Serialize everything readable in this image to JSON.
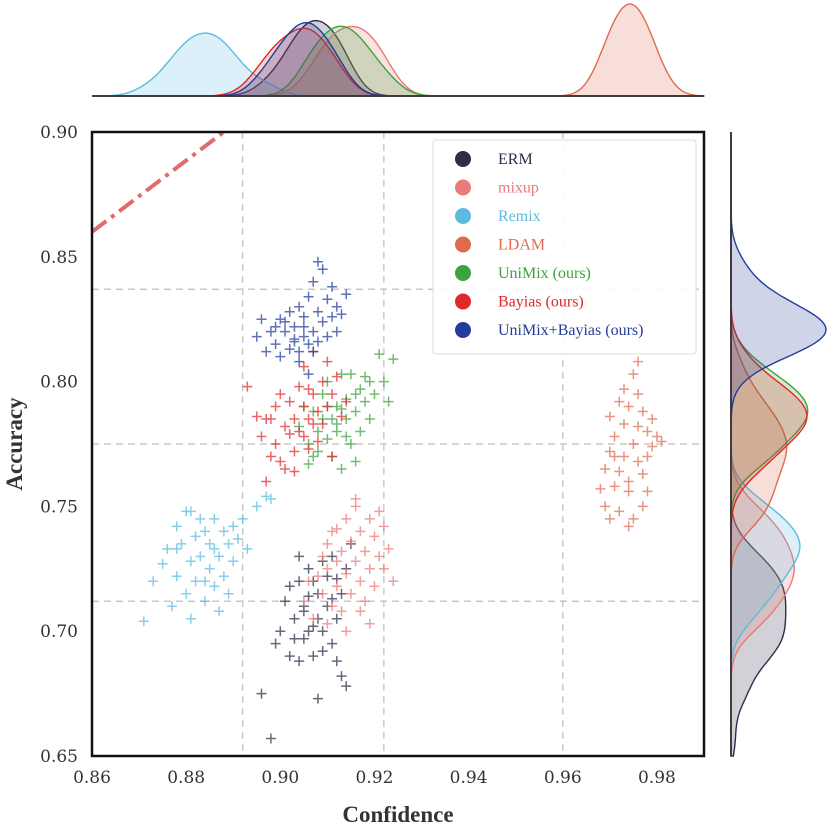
{
  "chart_data": {
    "type": "scatter",
    "xlabel": "Confidence",
    "ylabel": "Accuracy",
    "xlim": [
      0.86,
      0.99
    ],
    "ylim": [
      0.65,
      0.9
    ],
    "x_ticks": [
      "0.86",
      "0.88",
      "0.90",
      "0.92",
      "0.94",
      "0.96",
      "0.98"
    ],
    "y_ticks": [
      "0.65",
      "0.70",
      "0.75",
      "0.80",
      "0.85",
      "0.90"
    ],
    "grid_x": [
      0.892,
      0.922,
      0.96
    ],
    "grid_y": [
      0.712,
      0.775,
      0.837
    ],
    "reference_line": {
      "label": "",
      "color": "#e06c6c",
      "points": [
        [
          0.86,
          0.86
        ],
        [
          0.888,
          0.9
        ]
      ]
    },
    "legend_position": "top-right",
    "series": [
      {
        "name": "ERM",
        "color": "#2d2e4a",
        "points": [
          [
            0.896,
            0.675
          ],
          [
            0.898,
            0.657
          ],
          [
            0.899,
            0.695
          ],
          [
            0.9,
            0.7
          ],
          [
            0.901,
            0.712
          ],
          [
            0.902,
            0.69
          ],
          [
            0.902,
            0.718
          ],
          [
            0.903,
            0.705
          ],
          [
            0.904,
            0.688
          ],
          [
            0.904,
            0.72
          ],
          [
            0.905,
            0.708
          ],
          [
            0.905,
            0.697
          ],
          [
            0.906,
            0.714
          ],
          [
            0.906,
            0.725
          ],
          [
            0.907,
            0.702
          ],
          [
            0.907,
            0.69
          ],
          [
            0.908,
            0.673
          ],
          [
            0.908,
            0.715
          ],
          [
            0.909,
            0.7
          ],
          [
            0.909,
            0.728
          ],
          [
            0.91,
            0.71
          ],
          [
            0.91,
            0.722
          ],
          [
            0.911,
            0.695
          ],
          [
            0.911,
            0.73
          ],
          [
            0.912,
            0.705
          ],
          [
            0.912,
            0.688
          ],
          [
            0.913,
            0.682
          ],
          [
            0.913,
            0.715
          ],
          [
            0.914,
            0.725
          ],
          [
            0.914,
            0.678
          ],
          [
            0.915,
            0.735
          ],
          [
            0.903,
            0.697
          ],
          [
            0.905,
            0.71
          ],
          [
            0.907,
            0.72
          ],
          [
            0.909,
            0.692
          ],
          [
            0.911,
            0.713
          ],
          [
            0.906,
            0.7
          ],
          [
            0.904,
            0.73
          ],
          [
            0.912,
            0.721
          ],
          [
            0.908,
            0.705
          ]
        ]
      },
      {
        "name": "mixup",
        "color": "#ec7a7a",
        "points": [
          [
            0.905,
            0.712
          ],
          [
            0.906,
            0.72
          ],
          [
            0.907,
            0.705
          ],
          [
            0.908,
            0.722
          ],
          [
            0.909,
            0.73
          ],
          [
            0.909,
            0.715
          ],
          [
            0.91,
            0.735
          ],
          [
            0.91,
            0.725
          ],
          [
            0.911,
            0.71
          ],
          [
            0.911,
            0.74
          ],
          [
            0.912,
            0.728
          ],
          [
            0.912,
            0.718
          ],
          [
            0.913,
            0.732
          ],
          [
            0.913,
            0.708
          ],
          [
            0.914,
            0.745
          ],
          [
            0.914,
            0.723
          ],
          [
            0.915,
            0.736
          ],
          [
            0.915,
            0.715
          ],
          [
            0.916,
            0.728
          ],
          [
            0.916,
            0.75
          ],
          [
            0.917,
            0.72
          ],
          [
            0.917,
            0.74
          ],
          [
            0.918,
            0.732
          ],
          [
            0.918,
            0.712
          ],
          [
            0.919,
            0.725
          ],
          [
            0.919,
            0.745
          ],
          [
            0.92,
            0.738
          ],
          [
            0.92,
            0.718
          ],
          [
            0.921,
            0.73
          ],
          [
            0.922,
            0.725
          ],
          [
            0.922,
            0.742
          ],
          [
            0.923,
            0.733
          ],
          [
            0.924,
            0.72
          ],
          [
            0.916,
            0.753
          ],
          [
            0.919,
            0.703
          ],
          [
            0.921,
            0.748
          ],
          [
            0.91,
            0.703
          ],
          [
            0.914,
            0.7
          ],
          [
            0.912,
            0.741
          ],
          [
            0.917,
            0.708
          ]
        ]
      },
      {
        "name": "Remix",
        "color": "#5bbce0",
        "points": [
          [
            0.871,
            0.704
          ],
          [
            0.873,
            0.72
          ],
          [
            0.875,
            0.727
          ],
          [
            0.876,
            0.733
          ],
          [
            0.877,
            0.71
          ],
          [
            0.878,
            0.742
          ],
          [
            0.878,
            0.722
          ],
          [
            0.879,
            0.735
          ],
          [
            0.88,
            0.715
          ],
          [
            0.88,
            0.748
          ],
          [
            0.881,
            0.728
          ],
          [
            0.881,
            0.705
          ],
          [
            0.882,
            0.738
          ],
          [
            0.882,
            0.72
          ],
          [
            0.883,
            0.745
          ],
          [
            0.883,
            0.73
          ],
          [
            0.884,
            0.712
          ],
          [
            0.884,
            0.74
          ],
          [
            0.885,
            0.725
          ],
          [
            0.885,
            0.735
          ],
          [
            0.886,
            0.718
          ],
          [
            0.886,
            0.745
          ],
          [
            0.887,
            0.73
          ],
          [
            0.887,
            0.708
          ],
          [
            0.888,
            0.74
          ],
          [
            0.888,
            0.722
          ],
          [
            0.889,
            0.735
          ],
          [
            0.889,
            0.715
          ],
          [
            0.89,
            0.742
          ],
          [
            0.89,
            0.728
          ],
          [
            0.891,
            0.737
          ],
          [
            0.892,
            0.745
          ],
          [
            0.893,
            0.733
          ],
          [
            0.895,
            0.75
          ],
          [
            0.897,
            0.754
          ],
          [
            0.898,
            0.753
          ],
          [
            0.878,
            0.733
          ],
          [
            0.881,
            0.748
          ],
          [
            0.884,
            0.72
          ],
          [
            0.886,
            0.733
          ]
        ]
      },
      {
        "name": "LDAM",
        "color": "#de6b50",
        "points": [
          [
            0.968,
            0.757
          ],
          [
            0.969,
            0.765
          ],
          [
            0.969,
            0.75
          ],
          [
            0.97,
            0.772
          ],
          [
            0.97,
            0.745
          ],
          [
            0.971,
            0.758
          ],
          [
            0.971,
            0.778
          ],
          [
            0.972,
            0.764
          ],
          [
            0.972,
            0.748
          ],
          [
            0.973,
            0.783
          ],
          [
            0.973,
            0.77
          ],
          [
            0.974,
            0.756
          ],
          [
            0.974,
            0.79
          ],
          [
            0.974,
            0.76
          ],
          [
            0.975,
            0.775
          ],
          [
            0.975,
            0.745
          ],
          [
            0.976,
            0.782
          ],
          [
            0.976,
            0.768
          ],
          [
            0.976,
            0.795
          ],
          [
            0.977,
            0.788
          ],
          [
            0.977,
            0.763
          ],
          [
            0.978,
            0.78
          ],
          [
            0.978,
            0.77
          ],
          [
            0.979,
            0.785
          ],
          [
            0.979,
            0.774
          ],
          [
            0.98,
            0.778
          ],
          [
            0.981,
            0.776
          ],
          [
            0.975,
            0.803
          ],
          [
            0.976,
            0.808
          ],
          [
            0.972,
            0.792
          ],
          [
            0.973,
            0.797
          ],
          [
            0.97,
            0.786
          ],
          [
            0.977,
            0.75
          ],
          [
            0.974,
            0.742
          ],
          [
            0.971,
            0.77
          ],
          [
            0.978,
            0.756
          ]
        ]
      },
      {
        "name": "UniMix (ours)",
        "color": "#3da33d",
        "points": [
          [
            0.904,
            0.782
          ],
          [
            0.905,
            0.79
          ],
          [
            0.906,
            0.775
          ],
          [
            0.907,
            0.788
          ],
          [
            0.907,
            0.77
          ],
          [
            0.908,
            0.78
          ],
          [
            0.909,
            0.795
          ],
          [
            0.909,
            0.785
          ],
          [
            0.91,
            0.777
          ],
          [
            0.91,
            0.8
          ],
          [
            0.911,
            0.785
          ],
          [
            0.911,
            0.77
          ],
          [
            0.912,
            0.79
          ],
          [
            0.912,
            0.78
          ],
          [
            0.913,
            0.803
          ],
          [
            0.913,
            0.765
          ],
          [
            0.914,
            0.785
          ],
          [
            0.914,
            0.793
          ],
          [
            0.915,
            0.775
          ],
          [
            0.915,
            0.803
          ],
          [
            0.916,
            0.788
          ],
          [
            0.916,
            0.768
          ],
          [
            0.917,
            0.797
          ],
          [
            0.917,
            0.78
          ],
          [
            0.918,
            0.792
          ],
          [
            0.919,
            0.8
          ],
          [
            0.919,
            0.785
          ],
          [
            0.92,
            0.795
          ],
          [
            0.921,
            0.811
          ],
          [
            0.922,
            0.8
          ],
          [
            0.923,
            0.792
          ],
          [
            0.924,
            0.809
          ],
          [
            0.906,
            0.767
          ],
          [
            0.908,
            0.772
          ],
          [
            0.912,
            0.783
          ],
          [
            0.914,
            0.778
          ],
          [
            0.91,
            0.79
          ],
          [
            0.916,
            0.795
          ],
          [
            0.918,
            0.802
          ],
          [
            0.913,
            0.789
          ]
        ]
      },
      {
        "name": "Bayias (ours)",
        "color": "#e02a2a",
        "points": [
          [
            0.893,
            0.798
          ],
          [
            0.895,
            0.786
          ],
          [
            0.896,
            0.778
          ],
          [
            0.897,
            0.785
          ],
          [
            0.898,
            0.77
          ],
          [
            0.899,
            0.79
          ],
          [
            0.899,
            0.775
          ],
          [
            0.9,
            0.795
          ],
          [
            0.901,
            0.782
          ],
          [
            0.901,
            0.765
          ],
          [
            0.902,
            0.792
          ],
          [
            0.903,
            0.785
          ],
          [
            0.903,
            0.772
          ],
          [
            0.904,
            0.798
          ],
          [
            0.904,
            0.78
          ],
          [
            0.905,
            0.79
          ],
          [
            0.905,
            0.806
          ],
          [
            0.906,
            0.785
          ],
          [
            0.906,
            0.773
          ],
          [
            0.907,
            0.795
          ],
          [
            0.907,
            0.812
          ],
          [
            0.908,
            0.788
          ],
          [
            0.908,
            0.776
          ],
          [
            0.909,
            0.8
          ],
          [
            0.909,
            0.783
          ],
          [
            0.91,
            0.808
          ],
          [
            0.91,
            0.79
          ],
          [
            0.911,
            0.795
          ],
          [
            0.911,
            0.77
          ],
          [
            0.912,
            0.802
          ],
          [
            0.913,
            0.786
          ],
          [
            0.914,
            0.792
          ],
          [
            0.897,
            0.76
          ],
          [
            0.9,
            0.768
          ],
          [
            0.903,
            0.764
          ],
          [
            0.905,
            0.778
          ],
          [
            0.907,
            0.783
          ],
          [
            0.902,
            0.779
          ],
          [
            0.898,
            0.785
          ],
          [
            0.906,
            0.797
          ]
        ]
      },
      {
        "name": "UniMix+Bayias (ours)",
        "color": "#243c9a",
        "points": [
          [
            0.895,
            0.818
          ],
          [
            0.896,
            0.825
          ],
          [
            0.897,
            0.812
          ],
          [
            0.898,
            0.82
          ],
          [
            0.899,
            0.815
          ],
          [
            0.9,
            0.825
          ],
          [
            0.9,
            0.81
          ],
          [
            0.901,
            0.82
          ],
          [
            0.902,
            0.828
          ],
          [
            0.902,
            0.813
          ],
          [
            0.903,
            0.822
          ],
          [
            0.903,
            0.817
          ],
          [
            0.904,
            0.83
          ],
          [
            0.904,
            0.812
          ],
          [
            0.905,
            0.822
          ],
          [
            0.905,
            0.826
          ],
          [
            0.906,
            0.815
          ],
          [
            0.906,
            0.834
          ],
          [
            0.907,
            0.82
          ],
          [
            0.907,
            0.84
          ],
          [
            0.908,
            0.828
          ],
          [
            0.908,
            0.816
          ],
          [
            0.909,
            0.845
          ],
          [
            0.909,
            0.824
          ],
          [
            0.91,
            0.833
          ],
          [
            0.91,
            0.818
          ],
          [
            0.911,
            0.838
          ],
          [
            0.911,
            0.826
          ],
          [
            0.912,
            0.83
          ],
          [
            0.912,
            0.82
          ],
          [
            0.913,
            0.827
          ],
          [
            0.914,
            0.835
          ],
          [
            0.908,
            0.848
          ],
          [
            0.906,
            0.803
          ],
          [
            0.904,
            0.808
          ],
          [
            0.901,
            0.824
          ],
          [
            0.899,
            0.822
          ],
          [
            0.903,
            0.816
          ],
          [
            0.907,
            0.812
          ],
          [
            0.905,
            0.818
          ]
        ]
      }
    ]
  }
}
